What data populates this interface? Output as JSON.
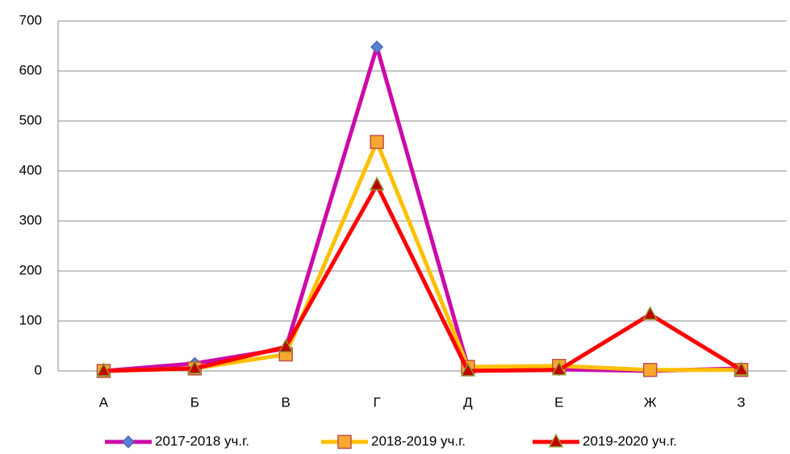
{
  "chart_data": {
    "type": "line",
    "categories": [
      "А",
      "Б",
      "В",
      "Г",
      "Д",
      "Е",
      "Ж",
      "З"
    ],
    "series": [
      {
        "name": "2017-2018 уч.г.",
        "color": "#cc0aa8",
        "marker": "diamond",
        "marker_color": "#5a7fd6",
        "values": [
          0,
          15,
          45,
          648,
          8,
          3,
          0,
          5
        ]
      },
      {
        "name": "2018-2019 уч.г.",
        "color": "#ffc000",
        "marker": "square",
        "marker_color": "#f7a830",
        "values": [
          0,
          5,
          33,
          458,
          8,
          10,
          2,
          2
        ]
      },
      {
        "name": "2019-2020 уч.г.",
        "color": "#ff0000",
        "marker": "triangle",
        "marker_color": "#c00000",
        "values": [
          0,
          5,
          48,
          372,
          0,
          2,
          113,
          2
        ]
      }
    ],
    "ylim": [
      0,
      700
    ],
    "yticks": [
      0,
      100,
      200,
      300,
      400,
      500,
      600,
      700
    ],
    "grid": true,
    "legend": "bottom"
  }
}
